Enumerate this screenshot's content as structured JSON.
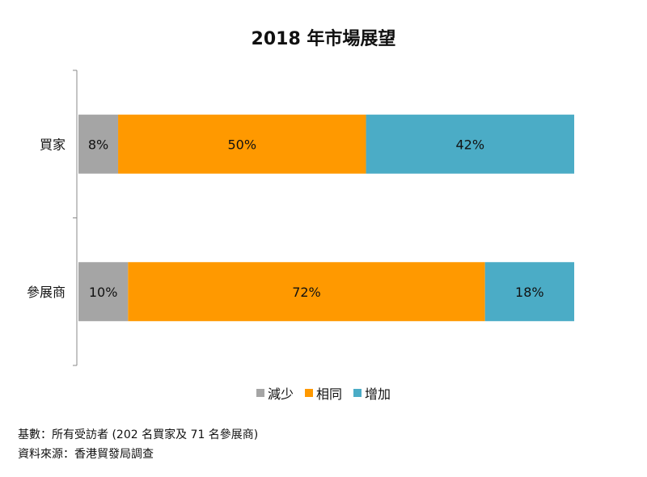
{
  "chart_data": {
    "type": "bar",
    "orientation": "horizontal",
    "stacked": true,
    "title": "2018 年市場展望",
    "categories": [
      "買家",
      "參展商"
    ],
    "series": [
      {
        "name": "減少",
        "color": "#a5a5a5",
        "values": [
          8,
          10
        ]
      },
      {
        "name": "相同",
        "color": "#ff9900",
        "values": [
          50,
          72
        ]
      },
      {
        "name": "增加",
        "color": "#4bacc6",
        "values": [
          42,
          18
        ]
      }
    ],
    "value_suffix": "%",
    "xlim": [
      0,
      100
    ],
    "legend": "bottom",
    "grid": false
  },
  "footnotes": {
    "base": "基數：所有受訪者 (202 名買家及 71 名參展商)",
    "source": "資料來源：香港貿發局調查"
  }
}
